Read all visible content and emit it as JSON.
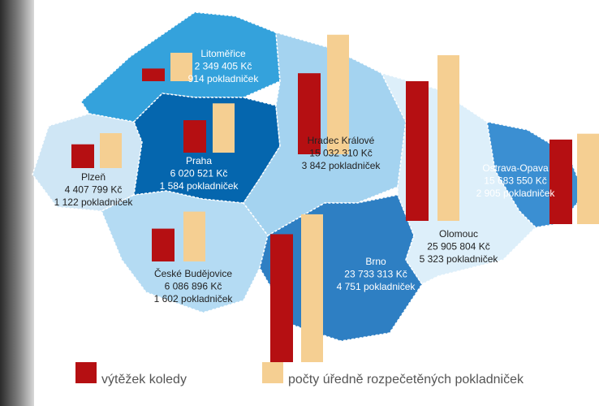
{
  "regions": [
    {
      "name": "Litoměřice",
      "amount": 2349405,
      "amount_label": "2 349 405 Kč",
      "boxes": 914,
      "boxes_label": "914 pokladniček"
    },
    {
      "name": "Praha",
      "amount": 6020521,
      "amount_label": "6 020 521 Kč",
      "boxes": 1584,
      "boxes_label": "1 584 pokladniček"
    },
    {
      "name": "Plzeň",
      "amount": 4407799,
      "amount_label": "4 407 799 Kč",
      "boxes": 1122,
      "boxes_label": "1 122 pokladniček"
    },
    {
      "name": "České Budějovice",
      "amount": 6086896,
      "amount_label": "6 086 896 Kč",
      "boxes": 1602,
      "boxes_label": "1 602 pokladniček"
    },
    {
      "name": "Hradec Králové",
      "amount": 15032310,
      "amount_label": "15 032 310 Kč",
      "boxes": 3842,
      "boxes_label": "3 842 pokladniček"
    },
    {
      "name": "Brno",
      "amount": 23733313,
      "amount_label": "23 733 313 Kč",
      "boxes": 4751,
      "boxes_label": "4 751 pokladniček"
    },
    {
      "name": "Olomouc",
      "amount": 25905804,
      "amount_label": "25 905 804 Kč",
      "boxes": 5323,
      "boxes_label": "5 323 pokladniček"
    },
    {
      "name": "Ostrava-Opava",
      "amount": 15683550,
      "amount_label": "15 683 550 Kč",
      "boxes": 2905,
      "boxes_label": "2 905 pokladniček"
    }
  ],
  "legend": {
    "amount": {
      "label": "výtěžek koledy",
      "color": "#b50f12"
    },
    "boxes": {
      "label": "počty úředně rozpečetěných pokladniček",
      "color": "#f5cf92"
    }
  }
}
